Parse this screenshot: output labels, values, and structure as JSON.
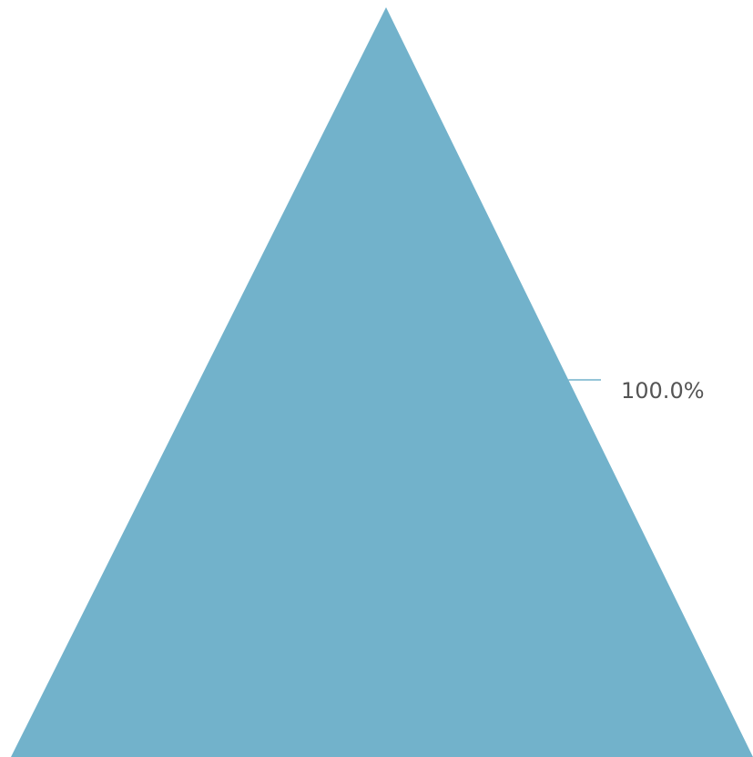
{
  "chart_data": {
    "type": "pyramid",
    "series": [
      {
        "values": [
          100.0
        ],
        "data_labels": [
          "100.0%"
        ],
        "color": "#72b2cb"
      }
    ],
    "legend": "none",
    "grid": false
  },
  "colors": {
    "background": "#ffffff",
    "segment": "#72b2cb",
    "label_text": "#555555",
    "leader_line": "#72b2cb"
  }
}
